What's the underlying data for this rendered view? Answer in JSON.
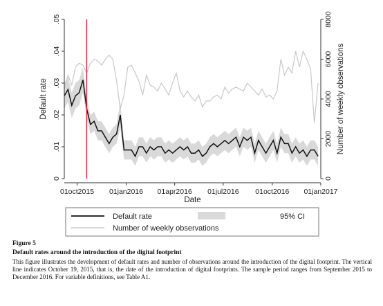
{
  "chart_data": {
    "type": "line",
    "xlabel": "Date",
    "ylabel_left": "Default rate",
    "ylabel_right": "Number of weekly observations",
    "x_ticks": [
      "01oct2015",
      "01jan2016",
      "01apr2016",
      "01jul2016",
      "01oct2016",
      "01jan2017"
    ],
    "y_left_ticks": [
      "0",
      ".01",
      ".02",
      ".03",
      ".04",
      ".05"
    ],
    "y_right_ticks": [
      "0",
      "2000",
      "4000",
      "6000",
      "8000"
    ],
    "ylim_left": [
      0,
      0.05
    ],
    "ylim_right": [
      0,
      8000
    ],
    "xlim": [
      "2015-09-07",
      "2016-12-31"
    ],
    "vline": {
      "date": "2015-10-19",
      "color": "#e8283c"
    },
    "x": [
      "2015-09-07",
      "2015-09-14",
      "2015-09-21",
      "2015-09-28",
      "2015-10-05",
      "2015-10-12",
      "2015-10-19",
      "2015-10-26",
      "2015-11-02",
      "2015-11-09",
      "2015-11-16",
      "2015-11-23",
      "2015-11-30",
      "2015-12-07",
      "2015-12-14",
      "2015-12-21",
      "2015-12-28",
      "2016-01-04",
      "2016-01-11",
      "2016-01-18",
      "2016-01-25",
      "2016-02-01",
      "2016-02-08",
      "2016-02-15",
      "2016-02-22",
      "2016-02-29",
      "2016-03-07",
      "2016-03-14",
      "2016-03-21",
      "2016-03-28",
      "2016-04-04",
      "2016-04-11",
      "2016-04-18",
      "2016-04-25",
      "2016-05-02",
      "2016-05-09",
      "2016-05-16",
      "2016-05-23",
      "2016-05-30",
      "2016-06-06",
      "2016-06-13",
      "2016-06-20",
      "2016-06-27",
      "2016-07-04",
      "2016-07-11",
      "2016-07-18",
      "2016-07-25",
      "2016-08-01",
      "2016-08-08",
      "2016-08-15",
      "2016-08-22",
      "2016-08-29",
      "2016-09-05",
      "2016-09-12",
      "2016-09-19",
      "2016-09-26",
      "2016-10-03",
      "2016-10-10",
      "2016-10-17",
      "2016-10-24",
      "2016-10-31",
      "2016-11-07",
      "2016-11-14",
      "2016-11-21",
      "2016-11-28",
      "2016-12-05",
      "2016-12-12",
      "2016-12-19",
      "2016-12-26"
    ],
    "series": [
      {
        "name": "Default rate",
        "axis": "left",
        "color": "#111111",
        "values": [
          0.026,
          0.028,
          0.023,
          0.026,
          0.027,
          0.031,
          0.022,
          0.017,
          0.018,
          0.015,
          0.015,
          0.013,
          0.011,
          0.013,
          0.014,
          0.02,
          0.009,
          0.009,
          0.009,
          0.007,
          0.01,
          0.01,
          0.008,
          0.01,
          0.009,
          0.01,
          0.01,
          0.008,
          0.009,
          0.008,
          0.009,
          0.01,
          0.009,
          0.01,
          0.008,
          0.008,
          0.009,
          0.007,
          0.008,
          0.01,
          0.011,
          0.01,
          0.011,
          0.012,
          0.011,
          0.012,
          0.013,
          0.01,
          0.013,
          0.012,
          0.013,
          0.008,
          0.012,
          0.01,
          0.008,
          0.01,
          0.012,
          0.008,
          0.013,
          0.011,
          0.011,
          0.008,
          0.01,
          0.008,
          0.009,
          0.007,
          0.009,
          0.009,
          0.007
        ],
        "ci_low": [
          0.022,
          0.024,
          0.019,
          0.022,
          0.023,
          0.027,
          0.019,
          0.014,
          0.015,
          0.012,
          0.012,
          0.01,
          0.008,
          0.01,
          0.011,
          0.016,
          0.006,
          0.006,
          0.006,
          0.004,
          0.007,
          0.007,
          0.005,
          0.007,
          0.006,
          0.007,
          0.007,
          0.005,
          0.006,
          0.005,
          0.006,
          0.007,
          0.006,
          0.007,
          0.005,
          0.005,
          0.006,
          0.004,
          0.005,
          0.007,
          0.008,
          0.007,
          0.008,
          0.009,
          0.008,
          0.009,
          0.01,
          0.007,
          0.01,
          0.009,
          0.01,
          0.005,
          0.009,
          0.007,
          0.005,
          0.007,
          0.009,
          0.005,
          0.01,
          0.008,
          0.008,
          0.005,
          0.007,
          0.005,
          0.006,
          0.004,
          0.006,
          0.006,
          0.004
        ],
        "ci_high": [
          0.03,
          0.032,
          0.027,
          0.03,
          0.031,
          0.035,
          0.025,
          0.02,
          0.021,
          0.018,
          0.018,
          0.016,
          0.014,
          0.016,
          0.017,
          0.024,
          0.012,
          0.012,
          0.012,
          0.01,
          0.013,
          0.013,
          0.011,
          0.013,
          0.012,
          0.013,
          0.013,
          0.011,
          0.012,
          0.011,
          0.012,
          0.013,
          0.012,
          0.013,
          0.011,
          0.011,
          0.012,
          0.01,
          0.011,
          0.013,
          0.014,
          0.013,
          0.014,
          0.015,
          0.014,
          0.015,
          0.016,
          0.013,
          0.016,
          0.015,
          0.016,
          0.011,
          0.015,
          0.013,
          0.011,
          0.013,
          0.015,
          0.011,
          0.016,
          0.014,
          0.014,
          0.011,
          0.013,
          0.011,
          0.012,
          0.01,
          0.012,
          0.012,
          0.01
        ]
      },
      {
        "name": "Number of weekly observations",
        "axis": "right",
        "color": "#c8c8c8",
        "values": [
          4500,
          5200,
          4700,
          5600,
          5800,
          5700,
          5300,
          5800,
          6000,
          5900,
          5700,
          6000,
          6200,
          6000,
          4900,
          3500,
          4200,
          5600,
          5700,
          5300,
          4900,
          4200,
          5200,
          4700,
          4600,
          4400,
          4800,
          4500,
          4200,
          4800,
          5300,
          4400,
          4100,
          4400,
          4100,
          3900,
          4200,
          3600,
          3900,
          3900,
          4100,
          4200,
          4000,
          4600,
          4300,
          4500,
          4600,
          4500,
          4400,
          4800,
          4600,
          4400,
          4200,
          4500,
          4100,
          4200,
          4000,
          4400,
          6000,
          5200,
          5600,
          5300,
          6400,
          5600,
          6400,
          6000,
          5500,
          2800,
          4800
        ]
      }
    ],
    "ci_label": "95% CI",
    "ci_color": "#d9d9d9",
    "legend_position": "bottom"
  },
  "caption": {
    "figure_number": "Figure 5",
    "title": "Default rates around the introduction of the digital footprint",
    "text": "This figure illustrates the development of default rates and number of observations around the introduction of the digital footprint. The vertical line indicates October 19, 2015, that is, the date of the introduction of digital footprints. The sample period ranges from September 2015 to December 2016. For variable definitions, see Table A1."
  }
}
